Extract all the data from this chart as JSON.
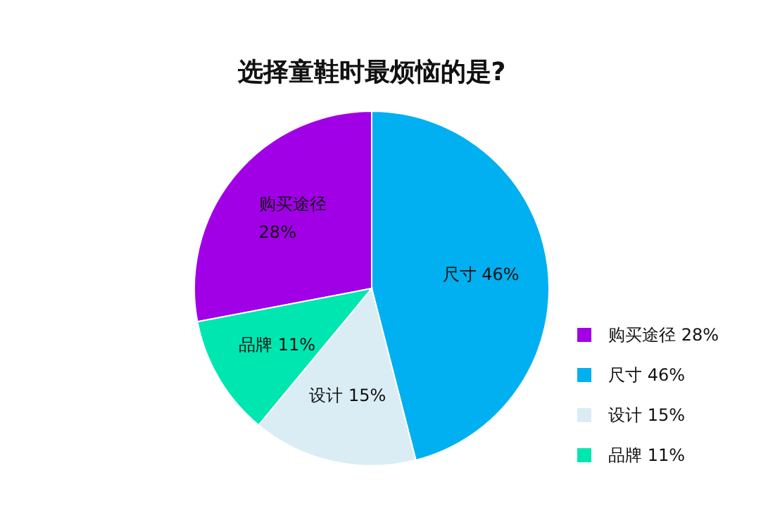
{
  "chart_data": {
    "type": "pie",
    "title": "选择童鞋时最烦恼的是?",
    "categories": [
      "购买途径",
      "尺寸",
      "设计",
      "品牌"
    ],
    "values": [
      28,
      46,
      15,
      11
    ],
    "value_labels": [
      "28%",
      "46%",
      "15%",
      "11%"
    ],
    "colors": [
      "#a100e6",
      "#00b0f0",
      "#daedf4",
      "#00e6b0"
    ],
    "legend": "right"
  }
}
